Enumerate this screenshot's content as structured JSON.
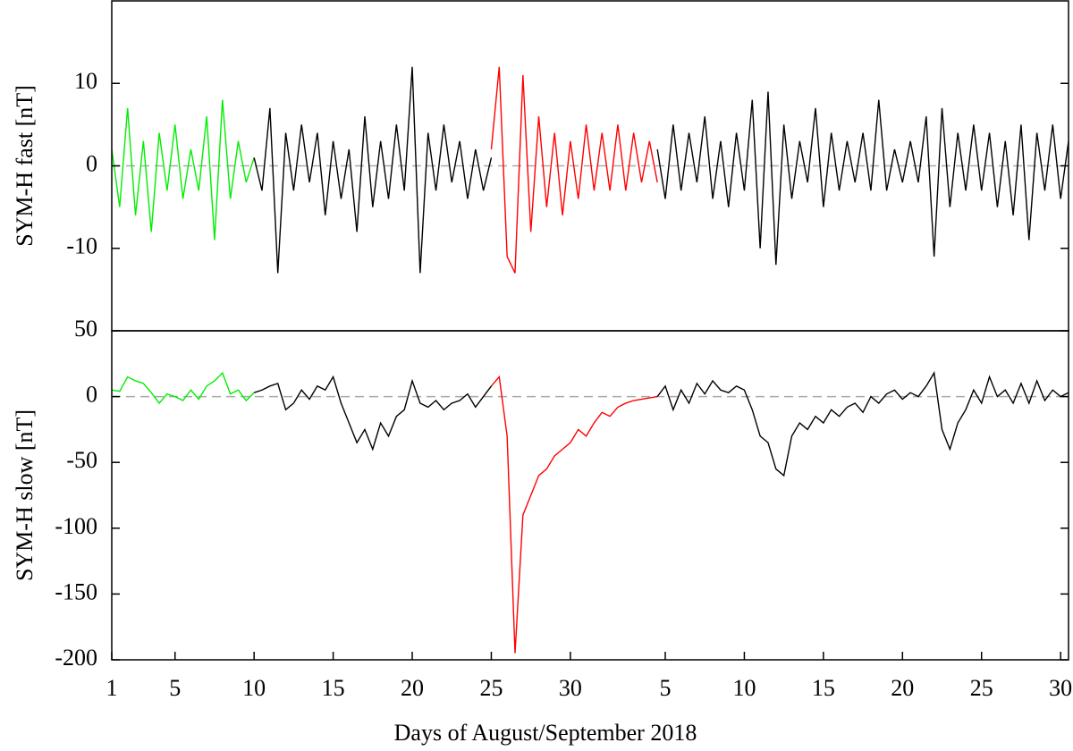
{
  "chart_data": [
    {
      "type": "line",
      "y_label": "SYM-H fast [nT]",
      "xlim": [
        1,
        61.5
      ],
      "ylim": [
        -20,
        20
      ],
      "yticks": [
        10,
        0,
        -10
      ],
      "zero_line": {
        "value": 0,
        "style": "dashed",
        "color": "#aaaaaa"
      },
      "series": [
        {
          "color": "#00ee00",
          "x": [
            1,
            1.5,
            2,
            2.5,
            3,
            3.5,
            4,
            4.5,
            5,
            5.5,
            6,
            6.5,
            7,
            7.5,
            8,
            8.5,
            9,
            9.5,
            10
          ],
          "values": [
            2,
            -5,
            7,
            -6,
            3,
            -8,
            4,
            -3,
            5,
            -4,
            2,
            -3,
            6,
            -9,
            8,
            -4,
            3,
            -2,
            1
          ]
        },
        {
          "color": "#000000",
          "x": [
            10,
            10.5,
            11,
            11.5,
            12,
            12.5,
            13,
            13.5,
            14,
            14.5,
            15,
            15.5,
            16,
            16.5,
            17,
            17.5,
            18,
            18.5,
            19,
            19.5,
            20,
            20.5,
            21,
            21.5,
            22,
            22.5,
            23,
            23.5,
            24,
            24.5,
            25
          ],
          "values": [
            1,
            -3,
            7,
            -13,
            4,
            -3,
            5,
            -2,
            4,
            -6,
            3,
            -4,
            2,
            -8,
            6,
            -5,
            3,
            -4,
            5,
            -3,
            12,
            -13,
            4,
            -3,
            5,
            -2,
            3,
            -4,
            2,
            -3,
            1
          ]
        },
        {
          "color": "#ff0000",
          "x": [
            25,
            25.5,
            26,
            26.5,
            27,
            27.5,
            28,
            28.5,
            29,
            29.5,
            30,
            30.5,
            31,
            31.5,
            32,
            32.5,
            33,
            33.5,
            34,
            34.5,
            35,
            35.5
          ],
          "values": [
            2,
            12,
            -11,
            -13,
            11,
            -8,
            6,
            -5,
            4,
            -6,
            3,
            -4,
            5,
            -3,
            4,
            -3,
            5,
            -3,
            4,
            -2,
            3,
            -2
          ]
        },
        {
          "color": "#000000",
          "x": [
            35.5,
            36,
            36.5,
            37,
            37.5,
            38,
            38.5,
            39,
            39.5,
            40,
            40.5,
            41,
            41.5,
            42,
            42.5,
            43,
            43.5,
            44,
            44.5,
            45,
            45.5,
            46,
            46.5,
            47,
            47.5,
            48,
            48.5,
            49,
            49.5,
            50,
            50.5,
            51,
            51.5,
            52,
            52.5,
            53,
            53.5,
            54,
            54.5,
            55,
            55.5,
            56,
            56.5,
            57,
            57.5,
            58,
            58.5,
            59,
            59.5,
            60,
            60.5,
            61,
            61.5
          ],
          "values": [
            2,
            -4,
            5,
            -3,
            4,
            -2,
            6,
            -4,
            3,
            -5,
            4,
            -3,
            8,
            -10,
            9,
            -12,
            5,
            -4,
            3,
            -2,
            7,
            -5,
            4,
            -3,
            3,
            -2,
            4,
            -3,
            8,
            -3,
            2,
            -2,
            3,
            -2,
            6,
            -11,
            7,
            -5,
            4,
            -3,
            5,
            -3,
            4,
            -5,
            3,
            -6,
            5,
            -9,
            4,
            -3,
            5,
            -4,
            3
          ]
        }
      ]
    },
    {
      "type": "line",
      "y_label": "SYM-H slow [nT]",
      "x_label": "Days of August/September 2018",
      "xlim": [
        1,
        61.5
      ],
      "ylim": [
        -200,
        50
      ],
      "yticks": [
        50,
        0,
        -50,
        -100,
        -150,
        -200
      ],
      "xticks": [
        1,
        5,
        10,
        15,
        20,
        25,
        30,
        {
          "value": 36,
          "label": "5"
        },
        {
          "value": 41,
          "label": "10"
        },
        {
          "value": 46,
          "label": "15"
        },
        {
          "value": 51,
          "label": "20"
        },
        {
          "value": 56,
          "label": "25"
        },
        {
          "value": 61,
          "label": "30"
        }
      ],
      "zero_line": {
        "value": 0,
        "style": "dashed",
        "color": "#aaaaaa"
      },
      "series": [
        {
          "color": "#00ee00",
          "x": [
            1,
            1.5,
            2,
            2.5,
            3,
            3.5,
            4,
            4.5,
            5,
            5.5,
            6,
            6.5,
            7,
            7.5,
            8,
            8.5,
            9,
            9.5,
            10
          ],
          "values": [
            5,
            4,
            15,
            12,
            10,
            3,
            -5,
            2,
            0,
            -3,
            5,
            -2,
            8,
            12,
            18,
            2,
            5,
            -3,
            3
          ]
        },
        {
          "color": "#000000",
          "x": [
            10,
            10.5,
            11,
            11.5,
            12,
            12.5,
            13,
            13.5,
            14,
            14.5,
            15,
            15.5,
            16,
            16.5,
            17,
            17.5,
            18,
            18.5,
            19,
            19.5,
            20,
            20.5,
            21,
            21.5,
            22,
            22.5,
            23,
            23.5,
            24,
            24.5,
            25
          ],
          "values": [
            3,
            5,
            8,
            10,
            -10,
            -5,
            5,
            -2,
            8,
            5,
            15,
            -5,
            -20,
            -35,
            -25,
            -40,
            -20,
            -30,
            -15,
            -10,
            12,
            -5,
            -8,
            -3,
            -10,
            -5,
            -3,
            2,
            -8,
            0,
            8
          ]
        },
        {
          "color": "#ff0000",
          "x": [
            25,
            25.5,
            26,
            26.5,
            27,
            27.5,
            28,
            28.5,
            29,
            29.5,
            30,
            30.5,
            31,
            31.5,
            32,
            32.5,
            33,
            33.5,
            34,
            34.5,
            35,
            35.5
          ],
          "values": [
            8,
            15,
            -30,
            -195,
            -90,
            -75,
            -60,
            -55,
            -45,
            -40,
            -35,
            -25,
            -30,
            -20,
            -12,
            -15,
            -8,
            -5,
            -3,
            -2,
            -1,
            0
          ]
        },
        {
          "color": "#000000",
          "x": [
            35.5,
            36,
            36.5,
            37,
            37.5,
            38,
            38.5,
            39,
            39.5,
            40,
            40.5,
            41,
            41.5,
            42,
            42.5,
            43,
            43.5,
            44,
            44.5,
            45,
            45.5,
            46,
            46.5,
            47,
            47.5,
            48,
            48.5,
            49,
            49.5,
            50,
            50.5,
            51,
            51.5,
            52,
            52.5,
            53,
            53.5,
            54,
            54.5,
            55,
            55.5,
            56,
            56.5,
            57,
            57.5,
            58,
            58.5,
            59,
            59.5,
            60,
            60.5,
            61,
            61.5
          ],
          "values": [
            0,
            8,
            -10,
            5,
            -5,
            10,
            2,
            12,
            5,
            3,
            8,
            5,
            -10,
            -30,
            -35,
            -55,
            -60,
            -30,
            -20,
            -25,
            -15,
            -20,
            -10,
            -15,
            -8,
            -5,
            -12,
            0,
            -5,
            2,
            5,
            -2,
            3,
            0,
            8,
            18,
            -25,
            -40,
            -20,
            -10,
            5,
            -5,
            15,
            0,
            5,
            -5,
            10,
            -5,
            12,
            -3,
            5,
            0,
            3
          ]
        }
      ]
    }
  ]
}
